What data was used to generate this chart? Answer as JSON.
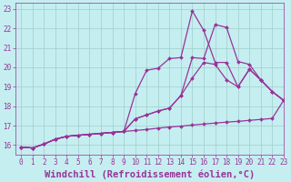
{
  "xlabel": "Windchill (Refroidissement éolien,°C)",
  "xlim": [
    -0.5,
    23
  ],
  "ylim": [
    15.5,
    23.3
  ],
  "xticks": [
    0,
    1,
    2,
    3,
    4,
    5,
    6,
    7,
    8,
    9,
    10,
    11,
    12,
    13,
    14,
    15,
    16,
    17,
    18,
    19,
    20,
    21,
    22,
    23
  ],
  "yticks": [
    16,
    17,
    18,
    19,
    20,
    21,
    22,
    23
  ],
  "background_color": "#c5eef0",
  "line_color": "#993399",
  "grid_color": "#a0cccc",
  "lines": [
    {
      "x": [
        0,
        1,
        2,
        3,
        4,
        5,
        6,
        7,
        8,
        9,
        10,
        11,
        12,
        13,
        14,
        15,
        16,
        17,
        18,
        19,
        20,
        21,
        22,
        23
      ],
      "y": [
        15.9,
        15.85,
        16.05,
        16.3,
        16.45,
        16.5,
        16.55,
        16.6,
        16.65,
        16.7,
        16.75,
        16.8,
        16.87,
        16.93,
        16.97,
        17.03,
        17.08,
        17.13,
        17.18,
        17.22,
        17.27,
        17.32,
        17.37,
        18.3
      ]
    },
    {
      "x": [
        0,
        1,
        2,
        3,
        4,
        5,
        6,
        7,
        8,
        9,
        10,
        11,
        12,
        13,
        14,
        15,
        16,
        17,
        18,
        19,
        20,
        21,
        22,
        23
      ],
      "y": [
        15.9,
        15.85,
        16.05,
        16.3,
        16.45,
        16.5,
        16.55,
        16.6,
        16.65,
        16.7,
        17.35,
        17.55,
        17.75,
        17.9,
        18.55,
        19.45,
        20.25,
        20.15,
        19.35,
        19.0,
        19.9,
        19.35,
        18.75,
        18.3
      ]
    },
    {
      "x": [
        0,
        1,
        2,
        3,
        4,
        5,
        6,
        7,
        8,
        9,
        10,
        11,
        12,
        13,
        14,
        15,
        16,
        17,
        18,
        19,
        20,
        21,
        22,
        23
      ],
      "y": [
        15.9,
        15.85,
        16.05,
        16.3,
        16.45,
        16.5,
        16.55,
        16.6,
        16.65,
        16.7,
        17.35,
        17.55,
        17.75,
        17.9,
        18.55,
        20.5,
        20.45,
        22.2,
        22.05,
        20.3,
        20.15,
        19.35,
        18.75,
        18.3
      ]
    },
    {
      "x": [
        0,
        1,
        2,
        3,
        4,
        5,
        6,
        7,
        8,
        9,
        10,
        11,
        12,
        13,
        14,
        15,
        16,
        17,
        18,
        19,
        20,
        21,
        22,
        23
      ],
      "y": [
        15.9,
        15.85,
        16.05,
        16.3,
        16.45,
        16.5,
        16.55,
        16.6,
        16.65,
        16.7,
        18.65,
        19.85,
        19.95,
        20.45,
        20.5,
        22.9,
        21.9,
        20.25,
        20.25,
        19.0,
        19.9,
        19.35,
        18.75,
        18.3
      ]
    }
  ],
  "font_color": "#993399",
  "tick_labelsize": 5.5,
  "xlabel_fontsize": 7.5,
  "markersize": 2.0,
  "linewidth": 0.9
}
